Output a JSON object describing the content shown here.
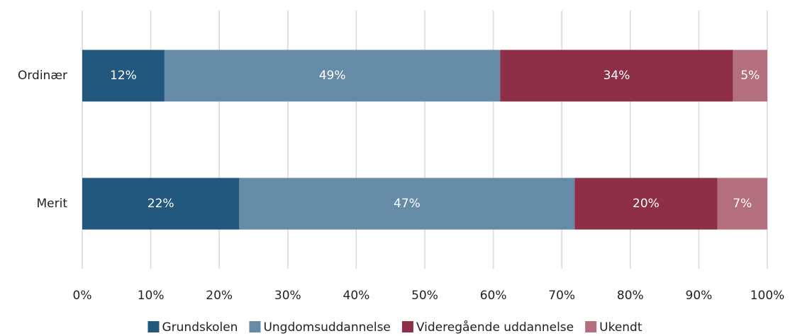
{
  "chart_data": {
    "type": "bar",
    "orientation": "horizontal",
    "stacking": "percent",
    "categories": [
      "Ordinær",
      "Merit"
    ],
    "series": [
      {
        "name": "Grundskolen",
        "color": "#22577e",
        "values": [
          12,
          22
        ],
        "value_labels": [
          "12%",
          "22%"
        ]
      },
      {
        "name": "Ungdomsuddannelse",
        "color": "#658ba6",
        "values": [
          49,
          47
        ],
        "value_labels": [
          "49%",
          "47%"
        ]
      },
      {
        "name": "Videregående uddannelse",
        "color": "#8e2e47",
        "values": [
          34,
          20
        ],
        "value_labels": [
          "34%",
          "20%"
        ]
      },
      {
        "name": "Ukendt",
        "color": "#b46f7e",
        "values": [
          5,
          7
        ],
        "value_labels": [
          "5%",
          "7%"
        ]
      }
    ],
    "xlim": [
      0,
      100
    ],
    "xticks": [
      {
        "value": 0,
        "label": "0%"
      },
      {
        "value": 10,
        "label": "10%"
      },
      {
        "value": 20,
        "label": "20%"
      },
      {
        "value": 30,
        "label": "30%"
      },
      {
        "value": 40,
        "label": "40%"
      },
      {
        "value": 50,
        "label": "50%"
      },
      {
        "value": 60,
        "label": "60%"
      },
      {
        "value": 70,
        "label": "70%"
      },
      {
        "value": 80,
        "label": "80%"
      },
      {
        "value": 90,
        "label": "90%"
      },
      {
        "value": 100,
        "label": "100%"
      }
    ],
    "grid": true,
    "legend": "bottom"
  }
}
